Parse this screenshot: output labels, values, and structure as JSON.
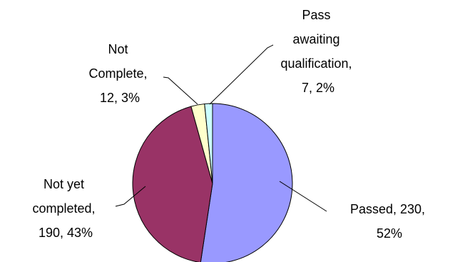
{
  "chart_data": {
    "type": "pie",
    "slices": [
      {
        "label_lines": [
          "Passed, 230,",
          "52%"
        ],
        "category": "Passed",
        "value": 230,
        "percent": 52,
        "color": "#9999ff"
      },
      {
        "label_lines": [
          "Not yet",
          "completed,",
          "190, 43%"
        ],
        "category": "Not yet completed",
        "value": 190,
        "percent": 43,
        "color": "#993366"
      },
      {
        "label_lines": [
          "Not",
          "Complete,",
          "12, 3%"
        ],
        "category": "Not Complete",
        "value": 12,
        "percent": 3,
        "color": "#ffffcc"
      },
      {
        "label_lines": [
          "Pass",
          "awaiting",
          "qualification,",
          "7, 2%"
        ],
        "category": "Pass awaiting qualification",
        "value": 7,
        "percent": 2,
        "color": "#ccffff"
      }
    ],
    "start_angle": "12 o'clock",
    "direction": "clockwise",
    "legend": "none"
  }
}
